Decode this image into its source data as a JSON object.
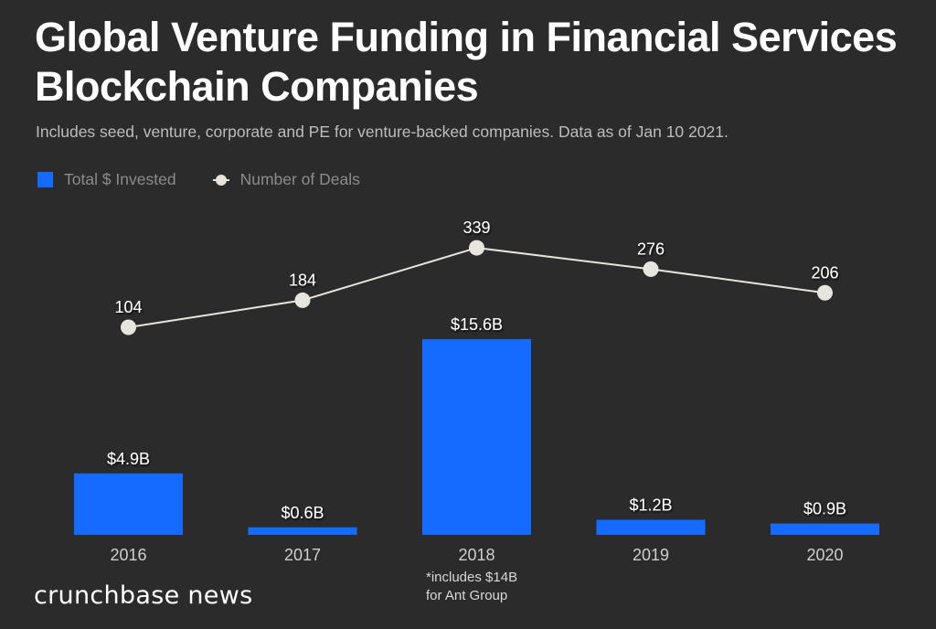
{
  "header": {
    "title": "Global Venture Funding in Financial Services Blockchain Companies",
    "subtitle": "Includes seed, venture, corporate and PE for venture-backed companies. Data as of Jan 10 2021."
  },
  "legend": {
    "items": [
      {
        "label": "Total $ Invested",
        "icon": "square-swatch-icon"
      },
      {
        "label": "Number of Deals",
        "icon": "line-dot-icon"
      }
    ]
  },
  "colors": {
    "background": "#2b2b2b",
    "bar": "#156bff",
    "line": "#e8e4de",
    "text": "#ffffff",
    "axis_text": "#cfcfcf"
  },
  "footnote": {
    "line1": "*includes $14B",
    "line2": "for Ant Group"
  },
  "branding": {
    "logo": "crunchbase news"
  },
  "chart_data": {
    "type": "bar",
    "title": "Global Venture Funding in Financial Services Blockchain Companies",
    "subtitle": "Includes seed, venture, corporate and PE for venture-backed companies. Data as of Jan 10 2021.",
    "categories": [
      "2016",
      "2017",
      "2018",
      "2019",
      "2020"
    ],
    "series": [
      {
        "name": "Total $ Invested",
        "type": "bar",
        "unit": "USD billions",
        "values": [
          4.9,
          0.6,
          15.6,
          1.2,
          0.9
        ],
        "labels": [
          "$4.9B",
          "$0.6B",
          "$15.6B",
          "$1.2B",
          "$0.9B"
        ]
      },
      {
        "name": "Number of Deals",
        "type": "line",
        "values": [
          104,
          184,
          339,
          276,
          206
        ],
        "labels": [
          "104",
          "184",
          "339",
          "276",
          "206"
        ]
      }
    ],
    "annotations": [
      "*includes $14B for Ant Group (2018)"
    ],
    "xlabel": "",
    "ylabel": "",
    "grid": false,
    "legend_position": "top-left"
  }
}
